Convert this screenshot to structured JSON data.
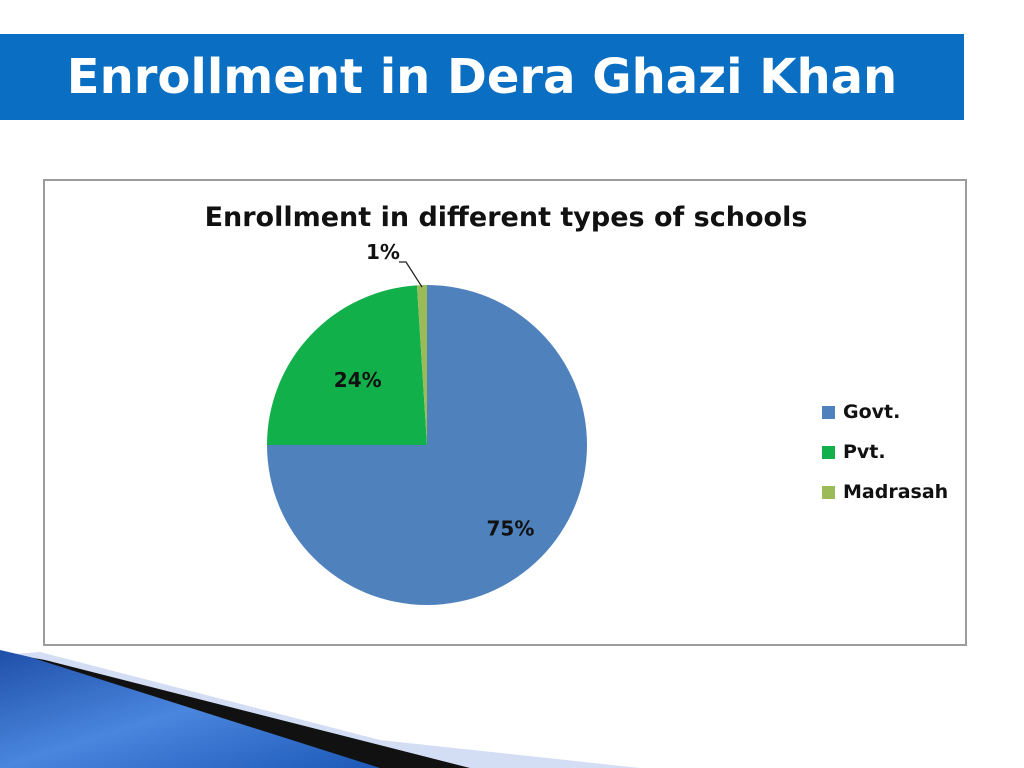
{
  "slide": {
    "title": "Enrollment in Dera Ghazi Khan"
  },
  "colors": {
    "banner": "#0a6fc2",
    "govt": "#4f81bd",
    "pvt": "#12b04a",
    "madrasah": "#9bbb59"
  },
  "chart_data": {
    "type": "pie",
    "title": "Enrollment in different types of schools",
    "categories": [
      "Govt.",
      "Pvt.",
      "Madrasah"
    ],
    "values": [
      75,
      24,
      1
    ],
    "labels": [
      "75%",
      "24%",
      "1%"
    ],
    "colors": [
      "#4f81bd",
      "#12b04a",
      "#9bbb59"
    ],
    "legend_position": "right"
  }
}
